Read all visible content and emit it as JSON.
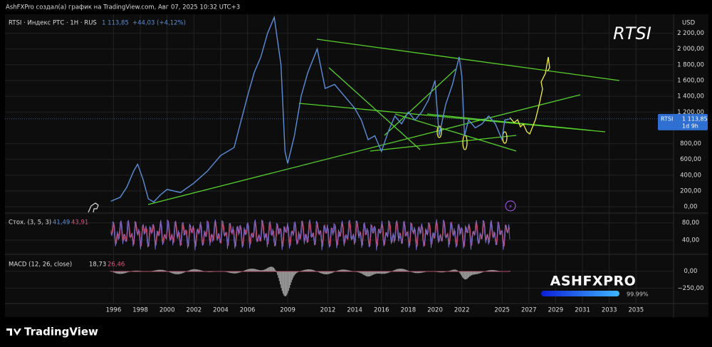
{
  "header": {
    "text": "AshFXPro создал(а) график на TradingView.com, Авг 07, 2025 10:32 UTC+3"
  },
  "chart_data": {
    "type": "line",
    "title": "RTSI",
    "symbol": "RTSI · Индекс РТС · 1H · RUS",
    "last": {
      "value": 1113.85,
      "label": "1 113,85"
    },
    "change": "+44,03 (+4,12%)",
    "currency": "USD",
    "countdown": "1d 9h",
    "series": [
      {
        "name": "RTSI",
        "color": "#5b8fd9",
        "x": [
          1995.8,
          1996.5,
          1997.0,
          1997.5,
          1997.8,
          1998.2,
          1998.6,
          1999.0,
          1999.5,
          2000.0,
          2001.0,
          2002.0,
          2003.0,
          2004.0,
          2005.0,
          2006.0,
          2006.5,
          2007.0,
          2007.5,
          2008.0,
          2008.5,
          2008.8,
          2009.0,
          2009.5,
          2010.0,
          2010.5,
          2011.2,
          2011.8,
          2012.5,
          2013.0,
          2013.5,
          2014.0,
          2014.5,
          2015.0,
          2015.5,
          2016.0,
          2016.5,
          2017.0,
          2017.5,
          2018.0,
          2018.5,
          2019.0,
          2019.5,
          2020.0,
          2020.3,
          2020.8,
          2021.3,
          2021.8,
          2022.0,
          2022.2,
          2022.5,
          2023.0,
          2023.5,
          2024.0,
          2024.5,
          2025.0,
          2025.2,
          2025.6
        ],
        "values": [
          70,
          120,
          250,
          450,
          540,
          350,
          100,
          60,
          150,
          220,
          180,
          300,
          450,
          650,
          750,
          1400,
          1700,
          1900,
          2200,
          2400,
          1800,
          700,
          550,
          900,
          1400,
          1700,
          2000,
          1500,
          1550,
          1450,
          1350,
          1250,
          1100,
          850,
          900,
          700,
          950,
          1150,
          1050,
          1200,
          1100,
          1200,
          1350,
          1600,
          900,
          1300,
          1550,
          1900,
          1650,
          900,
          1100,
          1000,
          1050,
          1150,
          1050,
          850,
          1100,
          1114
        ]
      }
    ],
    "xlim": [
      1987.9,
      2037.8
    ],
    "xticks": [
      1996,
      1998,
      2000,
      2002,
      2004,
      2006,
      2009,
      2012,
      2014,
      2016,
      2018,
      2020,
      2022,
      2025,
      2027,
      2029,
      2031,
      2033,
      2035
    ],
    "ylim": [
      -80,
      2440
    ],
    "yticks": [
      {
        "value": 0,
        "label": "0,00"
      },
      {
        "value": 200,
        "label": "200,00"
      },
      {
        "value": 400,
        "label": "400,00"
      },
      {
        "value": 600,
        "label": "600,00"
      },
      {
        "value": 800,
        "label": "800,00"
      },
      {
        "value": 1200,
        "label": "1 200,00"
      },
      {
        "value": 1400,
        "label": "1 400,00"
      },
      {
        "value": 1600,
        "label": "1 600,00"
      },
      {
        "value": 1800,
        "label": "1 800,00"
      },
      {
        "value": 2000,
        "label": "2 000,00"
      },
      {
        "value": 2200,
        "label": "2 200,00"
      }
    ]
  },
  "stochastic": {
    "title": "Стох. (3, 5, 3)",
    "k_label": "41,49",
    "d_label": "43,91",
    "ylim": [
      7,
      102.6
    ],
    "yticks": [
      {
        "value": 80,
        "label": "80,00"
      },
      {
        "value": 40,
        "label": "40,00"
      }
    ]
  },
  "macd": {
    "title": "MACD (12, 26, close)",
    "macd_label": "18,73",
    "signal_label": "26,46",
    "ylim": [
      -478,
      250
    ],
    "yticks": [
      {
        "value": 0,
        "label": "0,00"
      },
      {
        "value": -250,
        "label": "−250,00"
      }
    ]
  },
  "watermark": {
    "text": "ASHFXPRO",
    "percent": "99.99%"
  },
  "footer": {
    "brand": "TradingView"
  }
}
